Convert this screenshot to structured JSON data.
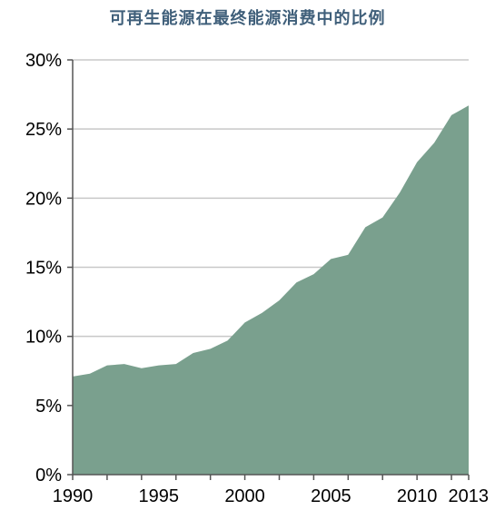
{
  "chart_data": {
    "type": "area",
    "title": "可再生能源在最终能源消费中的比例",
    "xlabel": "",
    "ylabel": "",
    "x": [
      1990,
      1991,
      1992,
      1993,
      1994,
      1995,
      1996,
      1997,
      1998,
      1999,
      2000,
      2001,
      2002,
      2003,
      2004,
      2005,
      2006,
      2007,
      2008,
      2009,
      2010,
      2011,
      2012,
      2013
    ],
    "values": [
      7.1,
      7.3,
      7.9,
      8.0,
      7.7,
      7.9,
      8.0,
      8.8,
      9.1,
      9.7,
      11.0,
      11.7,
      12.6,
      13.9,
      14.5,
      15.6,
      15.9,
      17.9,
      18.6,
      20.4,
      22.6,
      24.0,
      26.0,
      26.7
    ],
    "ylim": [
      0,
      30
    ],
    "yticks": [
      0,
      5,
      10,
      15,
      20,
      25,
      30
    ],
    "ytick_labels": [
      "0%",
      "5%",
      "10%",
      "15%",
      "20%",
      "25%",
      "30%"
    ],
    "xticks": [
      1990,
      1995,
      2000,
      2005,
      2010,
      2013
    ],
    "xtick_labels": [
      "1990",
      "1995",
      "2000",
      "2005",
      "2010",
      "2013"
    ],
    "grid": true,
    "legend": "none",
    "fill_color": "#7aa08e",
    "grid_color": "#c8c8c8",
    "title_color": "#3f5f7a"
  }
}
